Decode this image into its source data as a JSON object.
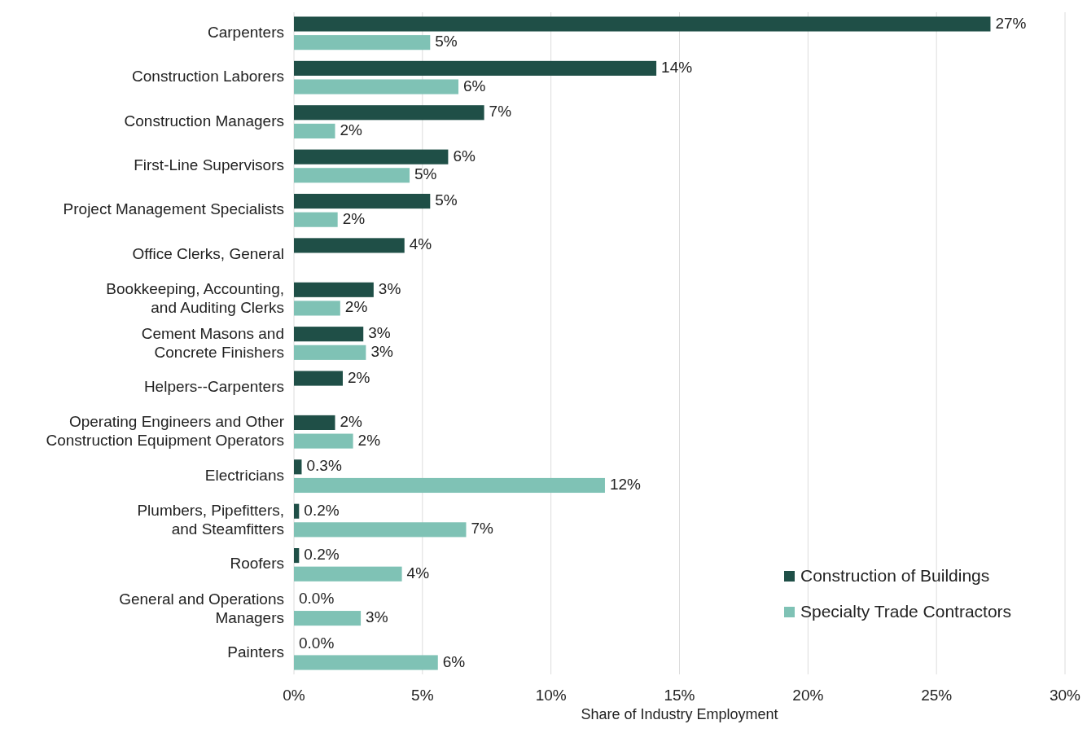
{
  "chart_data": {
    "type": "bar",
    "orientation": "horizontal",
    "xlabel": "Share of Industry Employment",
    "categories": [
      "Carpenters",
      "Construction Laborers",
      "Construction Managers",
      "First-Line Supervisors",
      "Project Management Specialists",
      "Office Clerks, General",
      "Bookkeeping, Accounting,\nand Auditing Clerks",
      "Cement Masons and\nConcrete Finishers",
      "Helpers--Carpenters",
      "Operating Engineers and Other\nConstruction Equipment Operators",
      "Electricians",
      "Plumbers, Pipefitters,\nand Steamfitters",
      "Roofers",
      "General and Operations\nManagers",
      "Painters"
    ],
    "series": [
      {
        "name": "Construction of Buildings",
        "color": "#1f4f47",
        "values": [
          27.1,
          14.1,
          7.4,
          6.0,
          5.3,
          4.3,
          3.1,
          2.7,
          1.9,
          1.6,
          0.3,
          0.2,
          0.2,
          0.0,
          0.0
        ],
        "value_labels": [
          "27%",
          "14%",
          "7%",
          "6%",
          "5%",
          "4%",
          "3%",
          "3%",
          "2%",
          "2%",
          "0.3%",
          "0.2%",
          "0.2%",
          "0.0%",
          "0.0%"
        ]
      },
      {
        "name": "Specialty Trade Contractors",
        "color": "#7fc2b5",
        "values": [
          5.3,
          6.4,
          1.6,
          4.5,
          1.7,
          null,
          1.8,
          2.8,
          null,
          2.3,
          12.1,
          6.7,
          4.2,
          2.6,
          5.6
        ],
        "value_labels": [
          "5%",
          "6%",
          "2%",
          "5%",
          "2%",
          null,
          "2%",
          "3%",
          null,
          "2%",
          "12%",
          "7%",
          "4%",
          "3%",
          "6%"
        ]
      }
    ],
    "xlim": [
      0,
      30
    ],
    "xticks": [
      {
        "value": 0,
        "label": "0%"
      },
      {
        "value": 5,
        "label": "5%"
      },
      {
        "value": 10,
        "label": "10%"
      },
      {
        "value": 15,
        "label": "15%"
      },
      {
        "value": 20,
        "label": "20%"
      },
      {
        "value": 25,
        "label": "25%"
      },
      {
        "value": 30,
        "label": "30%"
      }
    ],
    "grid": "x",
    "legend": "bottom right"
  }
}
